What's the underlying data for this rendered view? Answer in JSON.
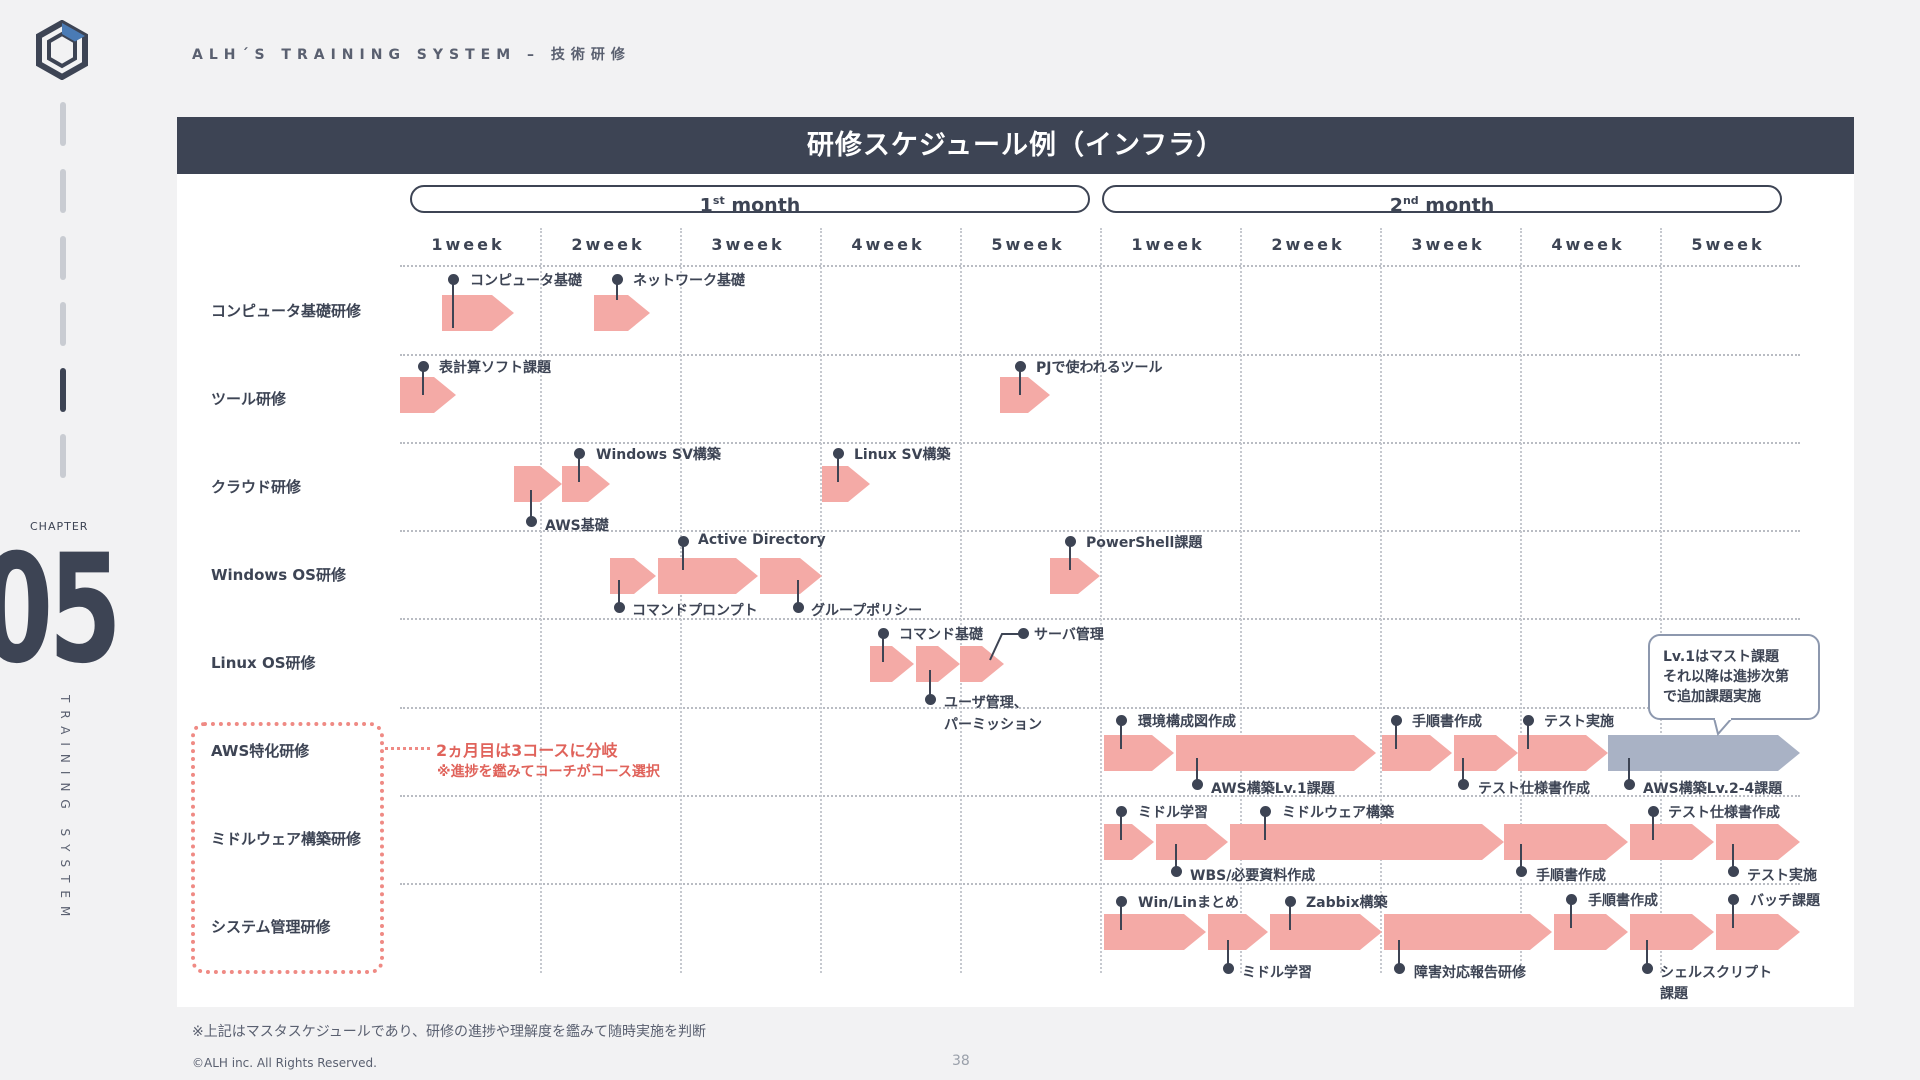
{
  "header": {
    "title": "ALH´S TRAINING SYSTEM – 技術研修"
  },
  "side": {
    "chapter_label": "CHAPTER",
    "chapter_number": "05",
    "vertical_text": "TRAINING SYSTEM"
  },
  "slide": {
    "title": "研修スケジュール例（インフラ）",
    "months": [
      {
        "num": "1",
        "sup": "st",
        "word": " month"
      },
      {
        "num": "2",
        "sup": "nd",
        "word": " month"
      }
    ],
    "weeks": [
      "1week",
      "2week",
      "3week",
      "4week",
      "5week",
      "1week",
      "2week",
      "3week",
      "4week",
      "5week"
    ],
    "rows": [
      "コンピュータ基礎研修",
      "ツール研修",
      "クラウド研修",
      "Windows OS研修",
      "Linux OS研修",
      "AWS特化研修",
      "ミドルウェア構築研修",
      "システム管理研修"
    ],
    "task_labels": {
      "comp_kiso": "コンピュータ基礎",
      "network_kiso": "ネットワーク基礎",
      "hyokeisan": "表計算ソフト課題",
      "pj_tool": "PJで使われるツール",
      "windows_sv": "Windows SV構築",
      "linux_sv": "Linux SV構築",
      "aws_kiso": "AWS基礎",
      "active_dir": "Active Directory",
      "powershell": "PowerShell課題",
      "cmd_prompt": "コマンドプロンプト",
      "group_policy": "グループポリシー",
      "command_kiso": "コマンド基礎",
      "server_kanri": "サーバ管理",
      "user_kanri_1": "ユーザ管理、",
      "user_kanri_2": "パーミッション",
      "kankyo": "環境構成図作成",
      "tejunsho_1": "手順書作成",
      "test_jisshi_1": "テスト実施",
      "aws_lv1": "AWS構築Lv.1課題",
      "test_shiyo_1": "テスト仕様書作成",
      "aws_lv2": "AWS構築Lv.2-4課題",
      "middle_gakushu_1": "ミドル学習",
      "middleware_kochiku": "ミドルウェア構築",
      "test_shiyo_2": "テスト仕様書作成",
      "wbs": "WBS/必要資料作成",
      "tejunsho_2": "手順書作成",
      "test_jisshi_2": "テスト実施",
      "winlin": "Win/Linまとめ",
      "zabbix": "Zabbix構築",
      "tejunsho_3": "手順書作成",
      "batch": "バッチ課題",
      "middle_gakushu_2": "ミドル学習",
      "shogai": "障害対応報告研修",
      "shell_1": "シェルスクリプト",
      "shell_2": "課題"
    },
    "aws_note": "2ヵ月目は3コースに分岐",
    "aws_note2": "※進捗を鑑みてコーチがコース選択",
    "callout": [
      "Lv.1はマスト課題",
      "それ以降は進捗次第",
      "で追加課題実施"
    ],
    "colors": {
      "navy": "#3d4454",
      "pink": "#f4aaa6",
      "grey_arrow": "#a9b2c5",
      "red_note": "#e0635b"
    }
  },
  "footer": {
    "footnote": "※上記はマスタスケジュールであり、研修の進捗や理解度を鑑みて随時実施を判断",
    "copyright": "©ALH inc. All Rights Reserved.",
    "page": "38"
  }
}
